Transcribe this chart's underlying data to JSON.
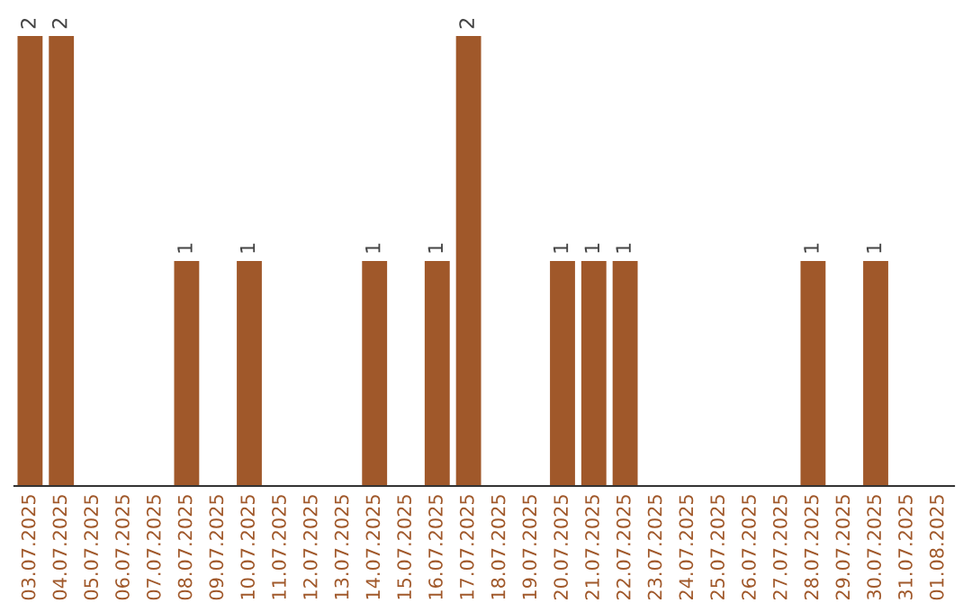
{
  "chart_data": {
    "type": "bar",
    "categories": [
      "03.07.2025",
      "04.07.2025",
      "05.07.2025",
      "06.07.2025",
      "07.07.2025",
      "08.07.2025",
      "09.07.2025",
      "10.07.2025",
      "11.07.2025",
      "12.07.2025",
      "13.07.2025",
      "14.07.2025",
      "15.07.2025",
      "16.07.2025",
      "17.07.2025",
      "18.07.2025",
      "19.07.2025",
      "20.07.2025",
      "21.07.2025",
      "22.07.2025",
      "23.07.2025",
      "24.07.2025",
      "25.07.2025",
      "26.07.2025",
      "27.07.2025",
      "28.07.2025",
      "29.07.2025",
      "30.07.2025",
      "31.07.2025",
      "01.08.2025"
    ],
    "values": [
      2,
      2,
      0,
      0,
      0,
      1,
      0,
      1,
      0,
      0,
      0,
      1,
      0,
      1,
      2,
      0,
      0,
      1,
      1,
      1,
      0,
      0,
      0,
      0,
      0,
      1,
      0,
      1,
      0,
      0
    ],
    "value_labels": [
      "2",
      "2",
      null,
      null,
      null,
      "1",
      null,
      "1",
      null,
      null,
      null,
      "1",
      null,
      "1",
      "2",
      null,
      null,
      "1",
      "1",
      "1",
      null,
      null,
      null,
      null,
      null,
      "1",
      null,
      "1",
      null,
      null
    ],
    "color": "#a0582a",
    "grid": false,
    "legend": false
  }
}
